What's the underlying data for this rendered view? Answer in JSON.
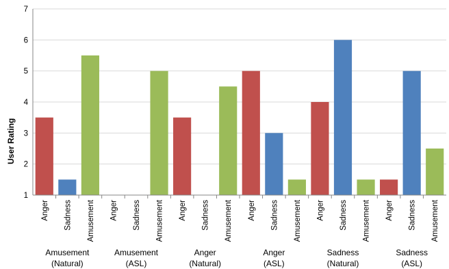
{
  "chart_data": {
    "type": "bar",
    "ylabel": "User Rating",
    "xlabel": "",
    "title": "",
    "ylim": [
      1,
      7
    ],
    "yticks": [
      "1",
      "2",
      "3",
      "4",
      "5",
      "6",
      "7"
    ],
    "grid": true,
    "legend": "none",
    "groups": [
      {
        "line1": "Amusement",
        "line2": "(Natural)"
      },
      {
        "line1": "Amusement",
        "line2": "(ASL)"
      },
      {
        "line1": "Anger",
        "line2": "(Natural)"
      },
      {
        "line1": "Anger",
        "line2": "(ASL)"
      },
      {
        "line1": "Sadness",
        "line2": "(Natural)"
      },
      {
        "line1": "Sadness",
        "line2": "(ASL)"
      }
    ],
    "categories": [
      "Anger",
      "Sadness",
      "Amusement"
    ],
    "colors": {
      "Anger": "#C0504D",
      "Sadness": "#4F81BD",
      "Amusement": "#9BBB59"
    },
    "values": [
      [
        3.5,
        1.5,
        5.5
      ],
      [
        1,
        1,
        5
      ],
      [
        3.5,
        1,
        4.5
      ],
      [
        5,
        3,
        1.5
      ],
      [
        4,
        6,
        1.5
      ],
      [
        1.5,
        5,
        2.5
      ]
    ]
  }
}
